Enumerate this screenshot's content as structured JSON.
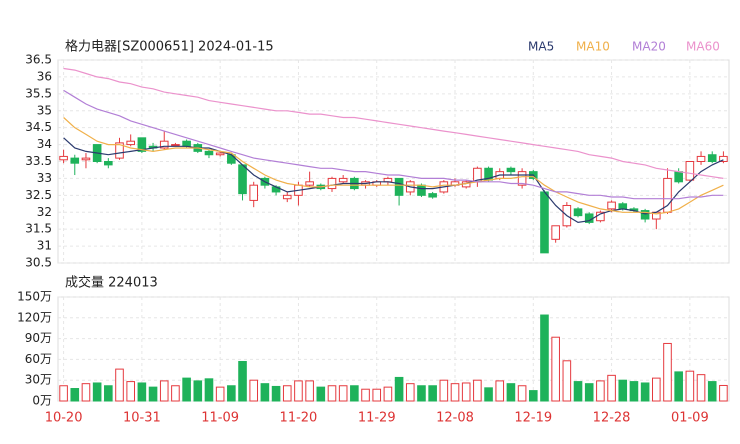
{
  "chart_data": [
    {
      "type": "candlestick",
      "title": "格力电器[SZ000651] 2024-01-15",
      "categories": [
        "10-20",
        null,
        null,
        null,
        null,
        null,
        null,
        "10-31",
        null,
        null,
        null,
        null,
        null,
        null,
        "11-09",
        null,
        null,
        null,
        null,
        null,
        null,
        "11-20",
        null,
        null,
        null,
        null,
        null,
        null,
        "11-29",
        null,
        null,
        null,
        null,
        null,
        null,
        "12-08",
        null,
        null,
        null,
        null,
        null,
        null,
        "12-19",
        null,
        null,
        null,
        null,
        null,
        null,
        "12-28",
        null,
        null,
        null,
        null,
        null,
        null,
        "01-09",
        null,
        null,
        null
      ],
      "open": [
        33.55,
        33.6,
        33.55,
        34.0,
        33.5,
        33.6,
        34.0,
        34.2,
        33.95,
        33.9,
        34.0,
        34.1,
        34.0,
        33.8,
        33.7,
        33.7,
        33.4,
        32.35,
        33.0,
        32.75,
        32.4,
        32.5,
        32.8,
        32.8,
        32.7,
        32.9,
        33.0,
        32.8,
        32.8,
        32.9,
        33.0,
        32.6,
        32.8,
        32.55,
        32.6,
        32.8,
        32.75,
        32.9,
        33.3,
        33.0,
        33.3,
        32.8,
        33.2,
        32.6,
        31.2,
        31.6,
        32.1,
        31.95,
        31.75,
        32.1,
        32.25,
        32.1,
        32.05,
        31.8,
        32.0,
        33.2,
        32.95,
        33.5,
        33.7,
        33.5
      ],
      "high": [
        33.85,
        33.7,
        33.75,
        34.0,
        33.6,
        34.2,
        34.3,
        34.2,
        34.05,
        34.4,
        34.05,
        34.15,
        34.05,
        33.85,
        33.8,
        33.75,
        33.4,
        32.9,
        33.05,
        32.8,
        32.6,
        32.9,
        33.2,
        32.85,
        33.05,
        33.1,
        33.05,
        32.95,
        32.95,
        33.05,
        33.0,
        32.95,
        32.85,
        32.6,
        32.95,
        33.0,
        32.95,
        33.35,
        33.35,
        33.3,
        33.35,
        33.3,
        33.25,
        32.65,
        31.6,
        32.3,
        32.15,
        32.0,
        32.05,
        32.35,
        32.3,
        32.15,
        32.1,
        32.0,
        33.3,
        33.3,
        33.5,
        33.8,
        33.8,
        33.8
      ],
      "low": [
        33.45,
        33.1,
        33.3,
        33.45,
        33.3,
        33.55,
        33.95,
        33.75,
        33.8,
        33.85,
        33.95,
        33.9,
        33.75,
        33.6,
        33.65,
        33.4,
        32.35,
        32.15,
        32.7,
        32.5,
        32.3,
        32.2,
        32.75,
        32.65,
        32.6,
        32.85,
        32.65,
        32.7,
        32.75,
        32.8,
        32.2,
        32.5,
        32.45,
        32.4,
        32.55,
        32.75,
        32.7,
        32.75,
        32.9,
        32.95,
        33.1,
        32.7,
        32.95,
        30.8,
        31.1,
        31.55,
        31.85,
        31.65,
        31.7,
        32.0,
        32.05,
        32.0,
        31.7,
        31.5,
        31.95,
        32.85,
        32.9,
        33.4,
        33.45,
        33.45
      ],
      "close": [
        33.65,
        33.45,
        33.6,
        33.5,
        33.4,
        34.05,
        34.1,
        33.8,
        33.9,
        34.1,
        34.0,
        33.95,
        33.8,
        33.7,
        33.75,
        33.45,
        32.55,
        32.8,
        32.8,
        32.6,
        32.5,
        32.8,
        32.9,
        32.7,
        33.0,
        33.0,
        32.7,
        32.9,
        32.9,
        33.0,
        32.5,
        32.9,
        32.5,
        32.45,
        32.9,
        32.9,
        32.9,
        33.3,
        32.95,
        33.2,
        33.2,
        33.2,
        33.0,
        30.8,
        31.6,
        32.2,
        31.9,
        31.7,
        32.0,
        32.3,
        32.1,
        32.05,
        31.8,
        32.0,
        33.0,
        32.9,
        33.5,
        33.65,
        33.5,
        33.65
      ],
      "up_color": "#e5393e",
      "down_color": "#1eb25a",
      "series": [
        {
          "name": "MA5",
          "color": "#2b3a6e",
          "values": [
            34.2,
            33.9,
            33.8,
            33.75,
            33.7,
            33.75,
            33.8,
            33.85,
            33.9,
            33.95,
            33.95,
            33.95,
            33.9,
            33.9,
            33.8,
            33.7,
            33.4,
            33.1,
            32.9,
            32.75,
            32.6,
            32.65,
            32.7,
            32.75,
            32.8,
            32.85,
            32.85,
            32.85,
            32.9,
            32.9,
            32.85,
            32.75,
            32.7,
            32.7,
            32.75,
            32.8,
            32.85,
            32.95,
            33.0,
            33.1,
            33.1,
            33.1,
            33.1,
            32.6,
            32.2,
            31.9,
            31.7,
            31.75,
            31.95,
            32.05,
            32.1,
            32.05,
            31.95,
            32.0,
            32.2,
            32.6,
            32.9,
            33.2,
            33.4,
            33.55
          ]
        },
        {
          "name": "MA10",
          "color": "#f0b04a",
          "values": [
            34.8,
            34.5,
            34.3,
            34.1,
            34.0,
            34.0,
            33.9,
            33.85,
            33.8,
            33.85,
            33.9,
            33.9,
            33.9,
            33.85,
            33.8,
            33.75,
            33.5,
            33.3,
            33.1,
            32.95,
            32.85,
            32.8,
            32.75,
            32.75,
            32.8,
            32.8,
            32.8,
            32.8,
            32.8,
            32.8,
            32.8,
            32.8,
            32.8,
            32.75,
            32.8,
            32.8,
            32.85,
            32.9,
            32.95,
            33.0,
            33.0,
            33.05,
            33.05,
            32.8,
            32.6,
            32.45,
            32.3,
            32.2,
            32.1,
            32.05,
            32.0,
            32.0,
            32.0,
            31.95,
            32.0,
            32.1,
            32.3,
            32.5,
            32.65,
            32.8
          ]
        },
        {
          "name": "MA20",
          "color": "#b27fd6",
          "values": [
            35.6,
            35.4,
            35.2,
            35.05,
            34.95,
            34.85,
            34.7,
            34.6,
            34.5,
            34.4,
            34.3,
            34.2,
            34.1,
            34.0,
            33.9,
            33.8,
            33.7,
            33.6,
            33.55,
            33.5,
            33.45,
            33.4,
            33.35,
            33.3,
            33.3,
            33.25,
            33.2,
            33.2,
            33.15,
            33.1,
            33.1,
            33.05,
            33.0,
            33.0,
            33.0,
            32.95,
            32.95,
            32.9,
            32.9,
            32.9,
            32.85,
            32.85,
            32.8,
            32.7,
            32.6,
            32.6,
            32.55,
            32.5,
            32.5,
            32.45,
            32.45,
            32.4,
            32.4,
            32.4,
            32.4,
            32.4,
            32.45,
            32.45,
            32.5,
            32.5
          ]
        },
        {
          "name": "MA60",
          "color": "#eb92cc",
          "values": [
            36.25,
            36.2,
            36.1,
            36.0,
            35.95,
            35.85,
            35.8,
            35.7,
            35.65,
            35.55,
            35.5,
            35.45,
            35.4,
            35.3,
            35.25,
            35.2,
            35.15,
            35.1,
            35.05,
            35.0,
            35.0,
            34.95,
            34.9,
            34.9,
            34.85,
            34.8,
            34.8,
            34.75,
            34.7,
            34.65,
            34.6,
            34.55,
            34.5,
            34.45,
            34.4,
            34.35,
            34.3,
            34.25,
            34.2,
            34.15,
            34.1,
            34.05,
            34.0,
            33.95,
            33.9,
            33.85,
            33.8,
            33.7,
            33.65,
            33.6,
            33.5,
            33.45,
            33.4,
            33.3,
            33.25,
            33.2,
            33.15,
            33.1,
            33.05,
            33.0
          ]
        }
      ],
      "ylim": [
        30.5,
        36.5
      ],
      "yticks": [
        30.5,
        31,
        31.5,
        32,
        32.5,
        33,
        33.5,
        34,
        34.5,
        35,
        35.5,
        36,
        36.5
      ],
      "grid": true,
      "legend": "top-right"
    },
    {
      "type": "volume",
      "title": "成交量 224013",
      "values": [
        22,
        18,
        25,
        26,
        22,
        46,
        28,
        26,
        20,
        29,
        22,
        33,
        29,
        32,
        20,
        22,
        57,
        30,
        25,
        21,
        22,
        29,
        29,
        20,
        22,
        22,
        22,
        17,
        17,
        20,
        34,
        25,
        22,
        22,
        30,
        25,
        26,
        30,
        19,
        29,
        25,
        22,
        15,
        124,
        92,
        58,
        28,
        25,
        29,
        37,
        30,
        28,
        26,
        33,
        83,
        42,
        43,
        38,
        28,
        22.4
      ],
      "ylim": [
        0,
        150
      ],
      "yticks": [
        {
          "value": 0,
          "label": "0万"
        },
        {
          "value": 30,
          "label": "30万"
        },
        {
          "value": 60,
          "label": "60万"
        },
        {
          "value": 90,
          "label": "90万"
        },
        {
          "value": 120,
          "label": "120万"
        },
        {
          "value": 150,
          "label": "150万"
        }
      ],
      "grid": true
    }
  ]
}
